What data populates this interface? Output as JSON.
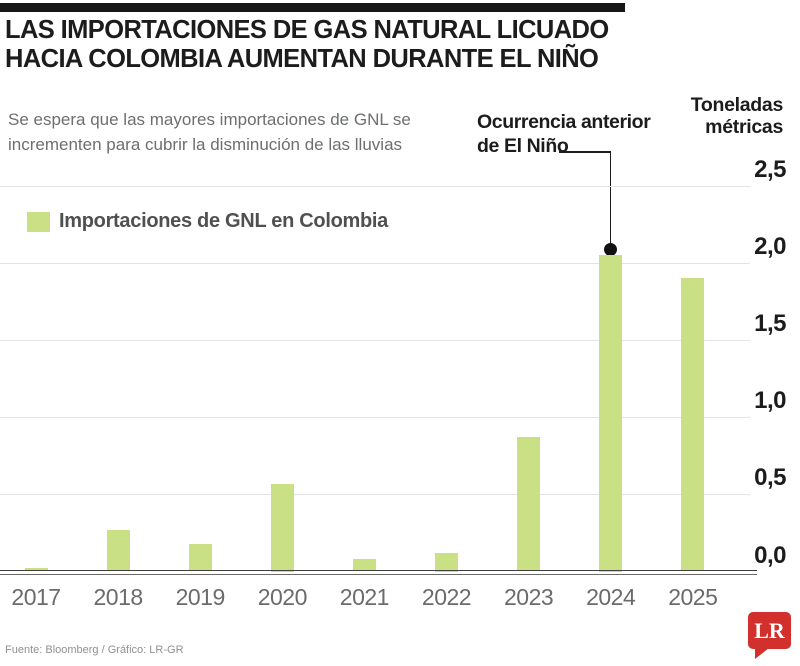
{
  "header": {
    "title_line1": "LAS IMPORTACIONES DE GAS NATURAL LICUADO",
    "title_line2": "HACIA COLOMBIA AUMENTAN DURANTE EL NIÑO",
    "subtitle_line1": "Se espera que las mayores importaciones de GNL se",
    "subtitle_line2": "incrementen para cubrir la disminución de las lluvias"
  },
  "axis_title": {
    "line1": "Toneladas",
    "line2": "métricas"
  },
  "annotation": {
    "line1": "Ocurrencia anterior",
    "line2": "de El Niño"
  },
  "legend": {
    "label": "Importaciones de GNL en Colombia"
  },
  "footer": {
    "source": "Fuente: Bloomberg / Gráfico: LR-GR",
    "logo": "LR",
    "logo_color": "#d2302c"
  },
  "colors": {
    "bar": "#c9e184",
    "accent_red": "#d2302c",
    "grid": "#e3e3e3"
  },
  "chart_data": {
    "type": "bar",
    "title": "Las importaciones de gas natural licuado hacia Colombia aumentan durante El Niño",
    "subtitle": "Se espera que las mayores importaciones de GNL se incrementen para cubrir la disminución de las lluvias",
    "series_name": "Importaciones de GNL en Colombia",
    "categories": [
      "2017",
      "2018",
      "2019",
      "2020",
      "2021",
      "2022",
      "2023",
      "2024",
      "2025"
    ],
    "values": [
      0.02,
      0.27,
      0.18,
      0.57,
      0.08,
      0.12,
      0.87,
      2.05,
      1.9
    ],
    "ylabel": "Toneladas métricas",
    "ylim": [
      0,
      2.5
    ],
    "yticks": [
      0,
      0.5,
      1,
      1.5,
      2,
      2.5
    ],
    "ytick_labels": [
      "0,0",
      "0,5",
      "1,0",
      "1,5",
      "2,0",
      "2,5"
    ],
    "grid": true,
    "legend_position": "top-left",
    "axis_side": "right",
    "annotation": {
      "text": "Ocurrencia anterior de El Niño",
      "target_category": "2024",
      "target_value": 2.05
    },
    "source": "Fuente: Bloomberg / Gráfico: LR-GR",
    "bar_color": "#c9e184"
  }
}
